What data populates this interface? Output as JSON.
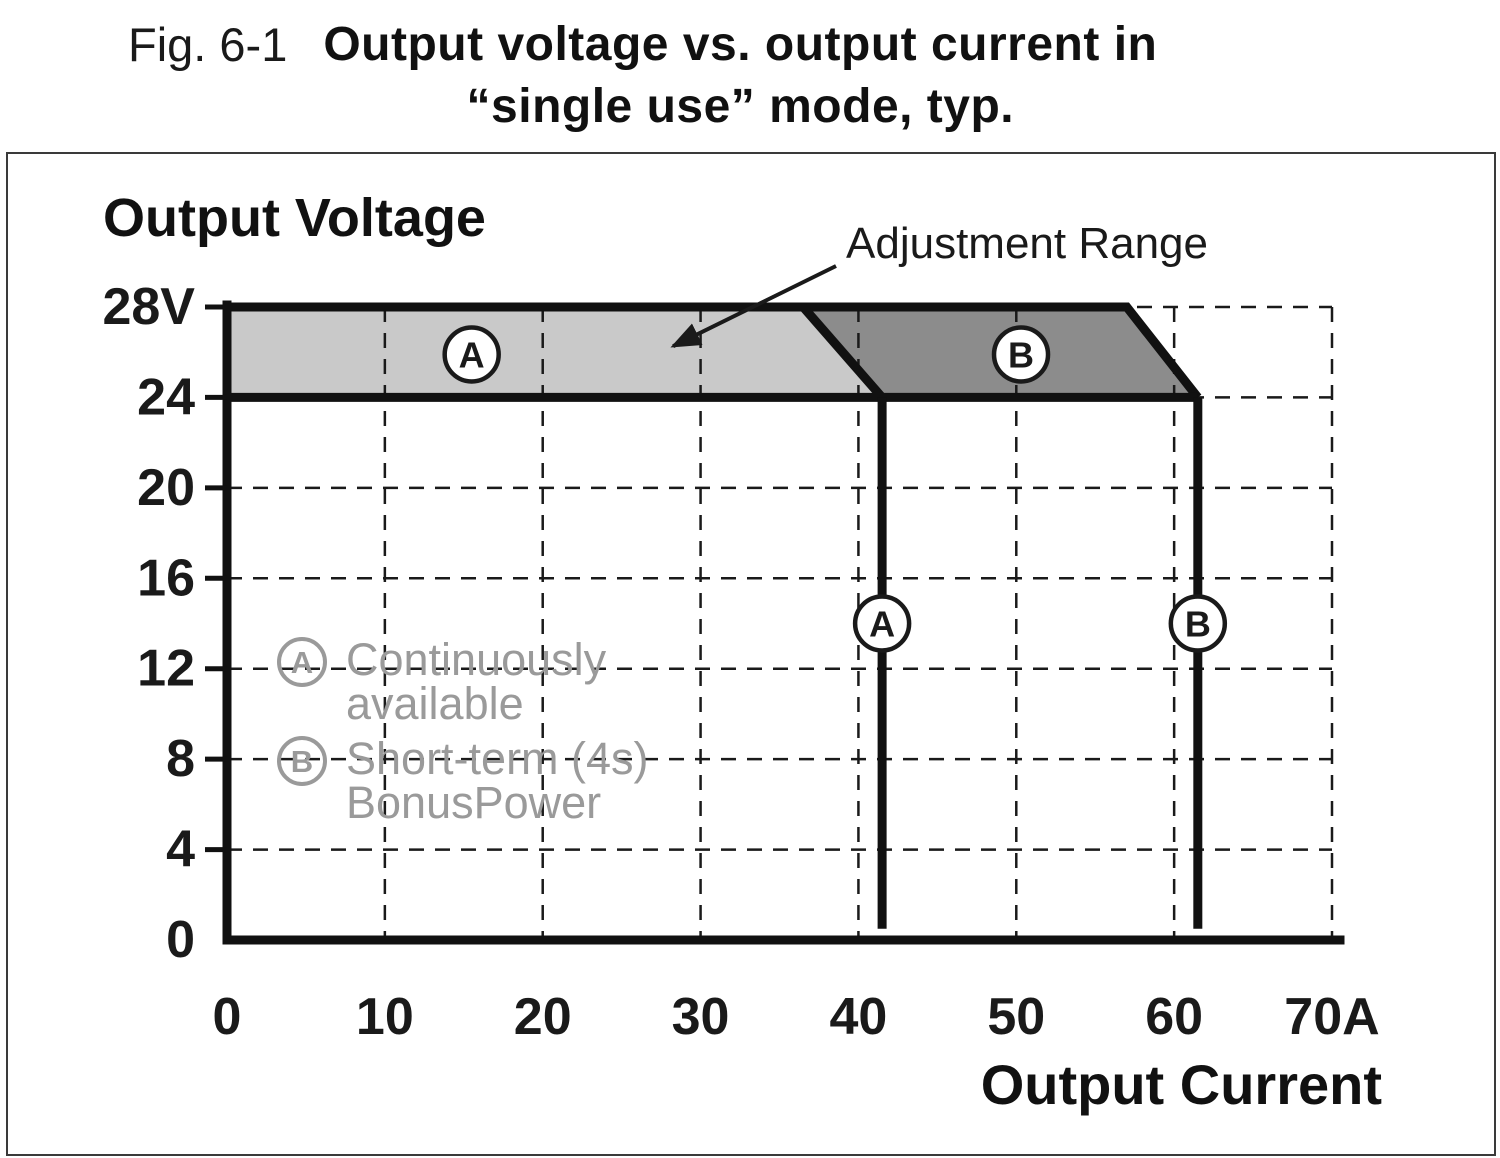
{
  "figure": {
    "label": "Fig. 6-1",
    "title_line1": "Output voltage vs. output current in",
    "title_line2": "“single use” mode, typ."
  },
  "chart_data": {
    "type": "area",
    "title": "Output voltage vs. output current in \"single use\" mode, typ.",
    "xlabel": "Output Current",
    "ylabel": "Output Voltage",
    "xlim": [
      0,
      70
    ],
    "ylim": [
      0,
      28
    ],
    "grid": {
      "style": "dashed",
      "x": [
        10,
        20,
        30,
        40,
        50,
        60,
        70
      ],
      "y": [
        4,
        8,
        12,
        16,
        20,
        24,
        28
      ]
    },
    "x_ticks": [
      {
        "v": 0,
        "label": "0"
      },
      {
        "v": 10,
        "label": "10"
      },
      {
        "v": 20,
        "label": "20"
      },
      {
        "v": 30,
        "label": "30"
      },
      {
        "v": 40,
        "label": "40"
      },
      {
        "v": 50,
        "label": "50"
      },
      {
        "v": 60,
        "label": "60"
      },
      {
        "v": 70,
        "label": "70A"
      }
    ],
    "y_ticks": [
      {
        "v": 0,
        "label": "0"
      },
      {
        "v": 4,
        "label": "4"
      },
      {
        "v": 8,
        "label": "8"
      },
      {
        "v": 12,
        "label": "12"
      },
      {
        "v": 16,
        "label": "16"
      },
      {
        "v": 20,
        "label": "20"
      },
      {
        "v": 24,
        "label": "24"
      },
      {
        "v": 28,
        "label": "28V"
      }
    ],
    "regions": [
      {
        "id": "A",
        "label": "A",
        "description": "Continuously available",
        "fill": "#c9c9c9",
        "points": [
          [
            0,
            24
          ],
          [
            0,
            28
          ],
          [
            36.5,
            28
          ],
          [
            41.5,
            24
          ]
        ],
        "badge_at": [
          15.5,
          25.9
        ]
      },
      {
        "id": "B",
        "label": "B",
        "description": "Short-term (4s) BonusPower",
        "fill": "#8c8c8c",
        "points": [
          [
            36.5,
            28
          ],
          [
            57,
            28
          ],
          [
            61.5,
            24
          ],
          [
            41.5,
            24
          ]
        ],
        "badge_at": [
          50.3,
          25.9
        ]
      }
    ],
    "envelope": [
      {
        "id": "top",
        "points": [
          [
            0,
            28
          ],
          [
            57,
            28
          ],
          [
            61.5,
            24
          ]
        ]
      },
      {
        "id": "rated-24v",
        "points": [
          [
            0,
            24
          ],
          [
            61.5,
            24
          ]
        ]
      },
      {
        "id": "ab-boundary",
        "points": [
          [
            36.5,
            28
          ],
          [
            41.5,
            24
          ]
        ]
      }
    ],
    "limit_lines": [
      {
        "id": "A",
        "label": "A",
        "x": 41.5,
        "from": 24,
        "to": 0.5,
        "badge_v": 14
      },
      {
        "id": "B",
        "label": "B",
        "x": 61.5,
        "from": 24,
        "to": 0.5,
        "badge_v": 14
      }
    ],
    "annotation": {
      "text": "Adjustment Range",
      "target": [
        27.5,
        26
      ]
    },
    "legend": [
      {
        "symbol": "A",
        "lines": [
          "Continuously",
          "available"
        ]
      },
      {
        "symbol": "B",
        "lines": [
          "Short-term (4s)",
          "BonusPower"
        ]
      }
    ]
  }
}
